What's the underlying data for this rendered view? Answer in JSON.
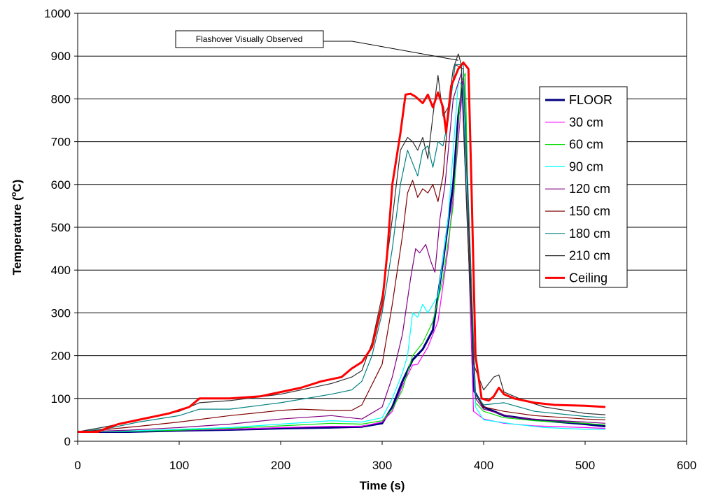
{
  "chart_data": {
    "type": "line",
    "xlabel": "Time (s)",
    "ylabel": "Temperature (°C)",
    "ylabel_parts": [
      "Temperature (",
      "o",
      "C)"
    ],
    "xlim": [
      0,
      600
    ],
    "ylim": [
      0,
      1000
    ],
    "x_ticks": [
      0,
      100,
      200,
      300,
      400,
      500,
      600
    ],
    "y_ticks": [
      0,
      100,
      200,
      300,
      400,
      500,
      600,
      700,
      800,
      900,
      1000
    ],
    "x_tick_labels": [
      "0",
      "100",
      "200",
      "300",
      "400",
      "500",
      "600"
    ],
    "y_tick_labels": [
      "0",
      "100",
      "200",
      "300",
      "400",
      "500",
      "600",
      "700",
      "800",
      "900",
      "1000"
    ],
    "grid": "horizontal",
    "legend_position": "right",
    "annotation": {
      "text": "Flashover Visually Observed",
      "x": 375,
      "y": 890
    },
    "series": [
      {
        "name": "FLOOR",
        "color": "#000080",
        "width": 3,
        "points": [
          [
            0,
            22
          ],
          [
            50,
            22
          ],
          [
            100,
            25
          ],
          [
            150,
            27
          ],
          [
            200,
            30
          ],
          [
            250,
            32
          ],
          [
            280,
            34
          ],
          [
            300,
            42
          ],
          [
            310,
            80
          ],
          [
            320,
            140
          ],
          [
            330,
            190
          ],
          [
            340,
            215
          ],
          [
            350,
            260
          ],
          [
            360,
            420
          ],
          [
            370,
            600
          ],
          [
            375,
            760
          ],
          [
            380,
            840
          ],
          [
            385,
            500
          ],
          [
            390,
            120
          ],
          [
            400,
            80
          ],
          [
            420,
            60
          ],
          [
            450,
            50
          ],
          [
            500,
            40
          ],
          [
            520,
            35
          ]
        ]
      },
      {
        "name": "30 cm",
        "color": "#ff00ff",
        "width": 1.2,
        "points": [
          [
            0,
            22
          ],
          [
            50,
            23
          ],
          [
            100,
            26
          ],
          [
            150,
            28
          ],
          [
            200,
            32
          ],
          [
            250,
            35
          ],
          [
            280,
            35
          ],
          [
            300,
            45
          ],
          [
            310,
            70
          ],
          [
            320,
            130
          ],
          [
            330,
            178
          ],
          [
            335,
            180
          ],
          [
            345,
            220
          ],
          [
            355,
            280
          ],
          [
            365,
            450
          ],
          [
            375,
            700
          ],
          [
            380,
            850
          ],
          [
            385,
            480
          ],
          [
            390,
            70
          ],
          [
            400,
            52
          ],
          [
            420,
            42
          ],
          [
            450,
            36
          ],
          [
            500,
            32
          ],
          [
            520,
            30
          ]
        ]
      },
      {
        "name": "60 cm",
        "color": "#00dd00",
        "width": 1.2,
        "points": [
          [
            0,
            22
          ],
          [
            50,
            23
          ],
          [
            100,
            26
          ],
          [
            150,
            30
          ],
          [
            200,
            36
          ],
          [
            250,
            42
          ],
          [
            280,
            40
          ],
          [
            300,
            48
          ],
          [
            310,
            75
          ],
          [
            320,
            120
          ],
          [
            330,
            200
          ],
          [
            340,
            230
          ],
          [
            350,
            280
          ],
          [
            360,
            380
          ],
          [
            370,
            550
          ],
          [
            378,
            840
          ],
          [
            382,
            860
          ],
          [
            386,
            400
          ],
          [
            392,
            90
          ],
          [
            400,
            70
          ],
          [
            420,
            55
          ],
          [
            450,
            48
          ],
          [
            500,
            42
          ],
          [
            520,
            38
          ]
        ]
      },
      {
        "name": "90 cm",
        "color": "#00ffff",
        "width": 1.2,
        "points": [
          [
            0,
            22
          ],
          [
            50,
            24
          ],
          [
            100,
            28
          ],
          [
            150,
            32
          ],
          [
            200,
            40
          ],
          [
            250,
            48
          ],
          [
            280,
            45
          ],
          [
            300,
            55
          ],
          [
            310,
            100
          ],
          [
            320,
            160
          ],
          [
            325,
            200
          ],
          [
            330,
            300
          ],
          [
            335,
            290
          ],
          [
            340,
            320
          ],
          [
            345,
            300
          ],
          [
            355,
            340
          ],
          [
            365,
            520
          ],
          [
            375,
            840
          ],
          [
            380,
            830
          ],
          [
            386,
            400
          ],
          [
            392,
            80
          ],
          [
            400,
            50
          ],
          [
            430,
            40
          ],
          [
            460,
            32
          ],
          [
            500,
            28
          ],
          [
            520,
            28
          ]
        ]
      },
      {
        "name": "120 cm",
        "color": "#800080",
        "width": 1.2,
        "points": [
          [
            0,
            22
          ],
          [
            50,
            26
          ],
          [
            100,
            32
          ],
          [
            150,
            40
          ],
          [
            200,
            52
          ],
          [
            250,
            60
          ],
          [
            280,
            52
          ],
          [
            300,
            80
          ],
          [
            310,
            150
          ],
          [
            320,
            250
          ],
          [
            328,
            380
          ],
          [
            333,
            450
          ],
          [
            337,
            440
          ],
          [
            343,
            460
          ],
          [
            348,
            420
          ],
          [
            352,
            395
          ],
          [
            357,
            520
          ],
          [
            362,
            600
          ],
          [
            370,
            800
          ],
          [
            378,
            860
          ],
          [
            385,
            450
          ],
          [
            392,
            100
          ],
          [
            400,
            75
          ],
          [
            430,
            55
          ],
          [
            460,
            50
          ],
          [
            500,
            45
          ],
          [
            520,
            42
          ]
        ]
      },
      {
        "name": "150 cm",
        "color": "#800000",
        "width": 1.2,
        "points": [
          [
            0,
            22
          ],
          [
            30,
            28
          ],
          [
            60,
            35
          ],
          [
            100,
            45
          ],
          [
            150,
            60
          ],
          [
            200,
            72
          ],
          [
            220,
            75
          ],
          [
            250,
            72
          ],
          [
            270,
            72
          ],
          [
            280,
            85
          ],
          [
            300,
            180
          ],
          [
            310,
            320
          ],
          [
            320,
            480
          ],
          [
            325,
            580
          ],
          [
            330,
            610
          ],
          [
            335,
            570
          ],
          [
            340,
            590
          ],
          [
            345,
            580
          ],
          [
            350,
            600
          ],
          [
            355,
            560
          ],
          [
            360,
            620
          ],
          [
            365,
            760
          ],
          [
            372,
            880
          ],
          [
            380,
            870
          ],
          [
            386,
            450
          ],
          [
            392,
            110
          ],
          [
            400,
            80
          ],
          [
            420,
            70
          ],
          [
            450,
            60
          ],
          [
            500,
            52
          ],
          [
            520,
            50
          ]
        ]
      },
      {
        "name": "180 cm",
        "color": "#008080",
        "width": 1.2,
        "points": [
          [
            0,
            22
          ],
          [
            30,
            30
          ],
          [
            60,
            45
          ],
          [
            100,
            60
          ],
          [
            120,
            75
          ],
          [
            150,
            75
          ],
          [
            200,
            90
          ],
          [
            250,
            110
          ],
          [
            270,
            120
          ],
          [
            280,
            140
          ],
          [
            290,
            200
          ],
          [
            300,
            300
          ],
          [
            310,
            450
          ],
          [
            318,
            600
          ],
          [
            325,
            680
          ],
          [
            330,
            650
          ],
          [
            335,
            620
          ],
          [
            340,
            680
          ],
          [
            345,
            690
          ],
          [
            350,
            640
          ],
          [
            355,
            700
          ],
          [
            360,
            690
          ],
          [
            365,
            750
          ],
          [
            372,
            880
          ],
          [
            380,
            880
          ],
          [
            386,
            500
          ],
          [
            392,
            110
          ],
          [
            400,
            85
          ],
          [
            420,
            90
          ],
          [
            450,
            70
          ],
          [
            500,
            58
          ],
          [
            520,
            55
          ]
        ]
      },
      {
        "name": "210 cm",
        "color": "#303030",
        "width": 1.2,
        "points": [
          [
            0,
            22
          ],
          [
            30,
            35
          ],
          [
            60,
            50
          ],
          [
            100,
            70
          ],
          [
            120,
            90
          ],
          [
            150,
            95
          ],
          [
            200,
            110
          ],
          [
            250,
            135
          ],
          [
            270,
            150
          ],
          [
            280,
            165
          ],
          [
            290,
            230
          ],
          [
            300,
            340
          ],
          [
            310,
            520
          ],
          [
            318,
            680
          ],
          [
            325,
            710
          ],
          [
            330,
            700
          ],
          [
            335,
            680
          ],
          [
            340,
            710
          ],
          [
            345,
            660
          ],
          [
            350,
            760
          ],
          [
            355,
            855
          ],
          [
            360,
            760
          ],
          [
            365,
            780
          ],
          [
            370,
            870
          ],
          [
            375,
            905
          ],
          [
            378,
            880
          ],
          [
            384,
            500
          ],
          [
            390,
            180
          ],
          [
            400,
            120
          ],
          [
            410,
            150
          ],
          [
            415,
            155
          ],
          [
            420,
            115
          ],
          [
            440,
            95
          ],
          [
            460,
            80
          ],
          [
            500,
            65
          ],
          [
            520,
            62
          ]
        ]
      },
      {
        "name": "Ceiling",
        "color": "#ff0000",
        "width": 3,
        "points": [
          [
            0,
            22
          ],
          [
            20,
            22
          ],
          [
            30,
            32
          ],
          [
            40,
            40
          ],
          [
            60,
            50
          ],
          [
            90,
            65
          ],
          [
            110,
            80
          ],
          [
            120,
            100
          ],
          [
            150,
            100
          ],
          [
            180,
            105
          ],
          [
            200,
            115
          ],
          [
            220,
            125
          ],
          [
            240,
            140
          ],
          [
            260,
            150
          ],
          [
            270,
            170
          ],
          [
            280,
            185
          ],
          [
            290,
            220
          ],
          [
            300,
            320
          ],
          [
            305,
            440
          ],
          [
            310,
            600
          ],
          [
            318,
            720
          ],
          [
            323,
            810
          ],
          [
            328,
            812
          ],
          [
            333,
            805
          ],
          [
            340,
            790
          ],
          [
            345,
            810
          ],
          [
            350,
            780
          ],
          [
            355,
            815
          ],
          [
            360,
            780
          ],
          [
            363,
            722
          ],
          [
            368,
            830
          ],
          [
            375,
            870
          ],
          [
            380,
            885
          ],
          [
            385,
            870
          ],
          [
            388,
            600
          ],
          [
            392,
            200
          ],
          [
            398,
            100
          ],
          [
            405,
            95
          ],
          [
            410,
            105
          ],
          [
            415,
            125
          ],
          [
            420,
            110
          ],
          [
            430,
            100
          ],
          [
            450,
            90
          ],
          [
            470,
            85
          ],
          [
            500,
            83
          ],
          [
            520,
            80
          ]
        ]
      }
    ]
  }
}
